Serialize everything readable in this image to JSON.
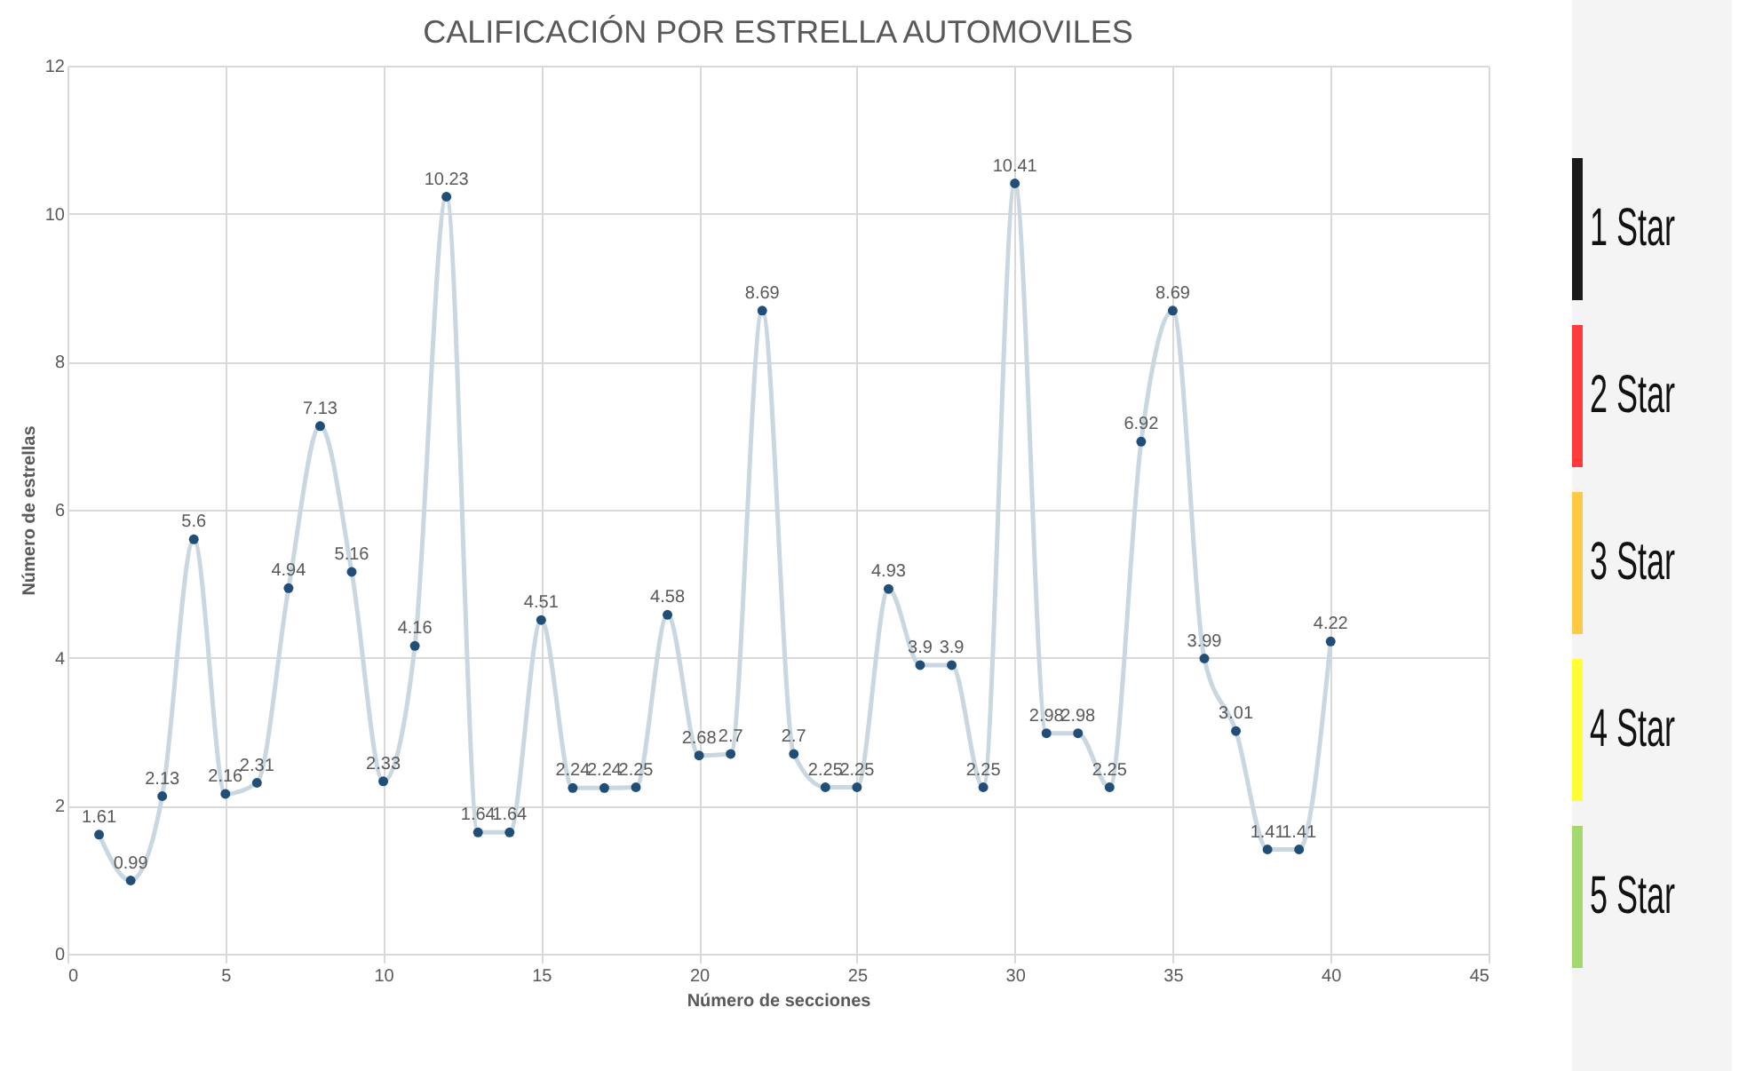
{
  "chart_data": {
    "type": "line",
    "title": "CALIFICACIÓN POR ESTRELLA AUTOMOVILES",
    "xlabel": "Número de secciones",
    "ylabel": "Número de estrellas",
    "x": [
      1,
      2,
      3,
      4,
      5,
      6,
      7,
      8,
      9,
      10,
      11,
      12,
      13,
      14,
      15,
      16,
      17,
      18,
      19,
      20,
      21,
      22,
      23,
      24,
      25,
      26,
      27,
      28,
      29,
      30,
      31,
      32,
      33,
      34,
      35,
      36,
      37,
      38,
      39,
      40
    ],
    "series": [
      {
        "color": "#c9d7e1",
        "values": [
          1.61,
          0.99,
          2.13,
          5.6,
          2.16,
          2.31,
          4.94,
          7.13,
          5.16,
          2.33,
          4.16,
          10.23,
          1.64,
          1.64,
          4.51,
          2.24,
          2.24,
          2.25,
          4.58,
          2.68,
          2.7,
          8.69,
          2.7,
          2.25,
          2.25,
          4.93,
          3.9,
          3.9,
          2.25,
          10.41,
          2.98,
          2.98,
          2.25,
          6.92,
          8.69,
          3.99,
          3.01,
          1.41,
          1.41,
          4.22
        ]
      }
    ],
    "xlim": [
      0,
      45
    ],
    "xticks": [
      0,
      5,
      10,
      15,
      20,
      25,
      30,
      35,
      40,
      45
    ],
    "ylim": [
      0,
      12
    ],
    "yticks": [
      0,
      2,
      4,
      6,
      8,
      10,
      12
    ],
    "grid": true,
    "marker": "circle",
    "line_style": "solid",
    "data_labels": true,
    "annotations": [
      "1 Star",
      "2 Star",
      "3 Star",
      "4 Star",
      "5 Star"
    ]
  }
}
